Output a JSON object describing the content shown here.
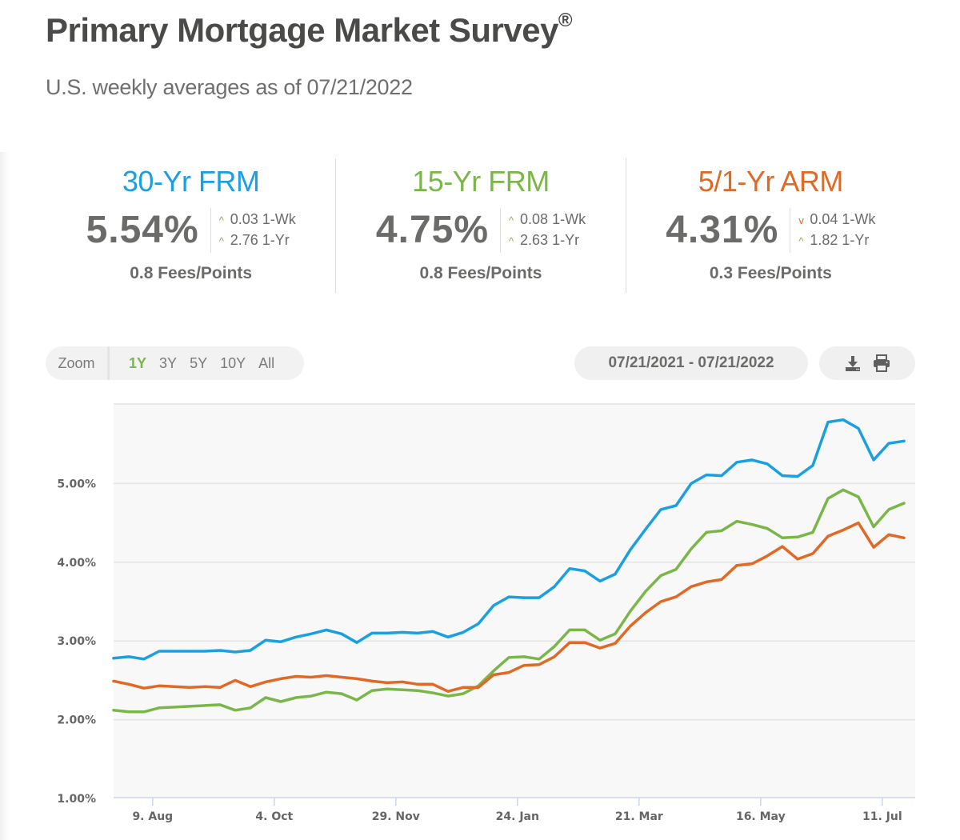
{
  "header": {
    "title": "Primary Mortgage Market Survey",
    "title_mark": "®",
    "subtitle": "U.S. weekly averages as of 07/21/2022"
  },
  "rates": [
    {
      "name": "30-Yr FRM",
      "color": "#1aa0e0",
      "value": "5.54%",
      "week_change": {
        "direction": "up",
        "value": "0.03",
        "label": "1-Wk"
      },
      "year_change": {
        "direction": "up",
        "value": "2.76",
        "label": "1-Yr"
      },
      "fees": "0.8 Fees/Points"
    },
    {
      "name": "15-Yr FRM",
      "color": "#7ab648",
      "value": "4.75%",
      "week_change": {
        "direction": "up",
        "value": "0.08",
        "label": "1-Wk"
      },
      "year_change": {
        "direction": "up",
        "value": "2.63",
        "label": "1-Yr"
      },
      "fees": "0.8 Fees/Points"
    },
    {
      "name": "5/1-Yr ARM",
      "color": "#e06a25",
      "value": "4.31%",
      "week_change": {
        "direction": "down",
        "value": "0.04",
        "label": "1-Wk"
      },
      "year_change": {
        "direction": "up",
        "value": "1.82",
        "label": "1-Yr"
      },
      "fees": "0.3 Fees/Points"
    }
  ],
  "controls": {
    "zoom_label": "Zoom",
    "zoom_options": [
      "1Y",
      "3Y",
      "5Y",
      "10Y",
      "All"
    ],
    "zoom_selected": "1Y",
    "date_range": "07/21/2021 - 07/21/2022",
    "download_icon": "download-icon",
    "print_icon": "print-icon"
  },
  "chart_data": {
    "type": "line",
    "title": "",
    "xlabel": "",
    "ylabel": "",
    "x_start": "2021-07-22",
    "x_interval": "weekly",
    "x_ticks": [
      "9. Aug",
      "4. Oct",
      "29. Nov",
      "24. Jan",
      "21. Mar",
      "16. May",
      "11. Jul"
    ],
    "x_tick_weeks_from_start": [
      2.57,
      10.57,
      18.57,
      26.57,
      34.57,
      42.57,
      50.57
    ],
    "y_ticks": [
      "1.00%",
      "2.00%",
      "3.00%",
      "4.00%",
      "5.00%"
    ],
    "ylim": [
      1.0,
      6.0
    ],
    "grid": true,
    "legend": "none",
    "series": [
      {
        "name": "30-Yr FRM",
        "color": "#1aa0e0",
        "values": [
          2.78,
          2.8,
          2.77,
          2.87,
          2.87,
          2.87,
          2.87,
          2.88,
          2.86,
          2.88,
          3.01,
          2.99,
          3.05,
          3.09,
          3.14,
          3.09,
          2.98,
          3.1,
          3.1,
          3.11,
          3.1,
          3.12,
          3.05,
          3.11,
          3.22,
          3.45,
          3.56,
          3.55,
          3.55,
          3.69,
          3.92,
          3.89,
          3.76,
          3.85,
          4.16,
          4.42,
          4.67,
          4.72,
          5.0,
          5.11,
          5.1,
          5.27,
          5.3,
          5.25,
          5.1,
          5.09,
          5.23,
          5.78,
          5.81,
          5.7,
          5.3,
          5.51,
          5.54
        ]
      },
      {
        "name": "15-Yr FRM",
        "color": "#7ab648",
        "values": [
          2.12,
          2.1,
          2.1,
          2.15,
          2.16,
          2.17,
          2.18,
          2.19,
          2.12,
          2.15,
          2.28,
          2.23,
          2.28,
          2.3,
          2.35,
          2.33,
          2.25,
          2.37,
          2.39,
          2.38,
          2.37,
          2.34,
          2.3,
          2.33,
          2.43,
          2.62,
          2.79,
          2.8,
          2.77,
          2.93,
          3.14,
          3.14,
          3.01,
          3.09,
          3.38,
          3.63,
          3.83,
          3.91,
          4.17,
          4.38,
          4.4,
          4.52,
          4.48,
          4.43,
          4.31,
          4.32,
          4.38,
          4.81,
          4.92,
          4.83,
          4.45,
          4.67,
          4.75
        ]
      },
      {
        "name": "5/1-Yr ARM",
        "color": "#e06a25",
        "values": [
          2.49,
          2.45,
          2.4,
          2.43,
          2.42,
          2.41,
          2.42,
          2.41,
          2.5,
          2.42,
          2.48,
          2.52,
          2.55,
          2.54,
          2.56,
          2.54,
          2.52,
          2.49,
          2.47,
          2.48,
          2.45,
          2.45,
          2.36,
          2.41,
          2.41,
          2.57,
          2.6,
          2.69,
          2.7,
          2.8,
          2.98,
          2.98,
          2.91,
          2.97,
          3.19,
          3.36,
          3.5,
          3.56,
          3.69,
          3.75,
          3.78,
          3.96,
          3.98,
          4.08,
          4.2,
          4.04,
          4.11,
          4.33,
          4.41,
          4.5,
          4.19,
          4.35,
          4.31
        ]
      }
    ]
  }
}
